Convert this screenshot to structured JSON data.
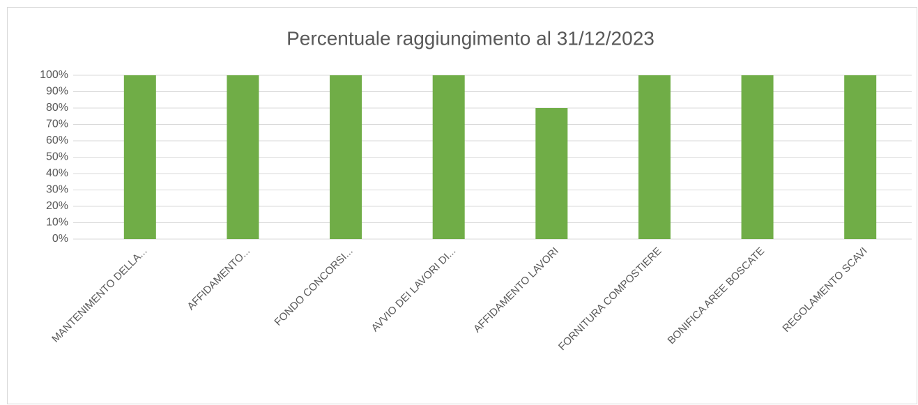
{
  "chart_data": {
    "type": "bar",
    "title": "Percentuale raggiungimento al 31/12/2023",
    "categories": [
      "MANTENIMENTO DELLA...",
      "AFFIDAMENTO...",
      "FONDO CONCORSI...",
      "AVVIO DEI LAVORI DI...",
      "AFFIDAMENTO LAVORI",
      "FORNITURA COMPOSTIERE",
      "BONIFICA AREE BOSCATE",
      "REGOLAMENTO SCAVI"
    ],
    "values": [
      100,
      100,
      100,
      100,
      80,
      100,
      100,
      100
    ],
    "color": "#70ad47",
    "ylim": [
      0,
      100
    ],
    "yticks": [
      {
        "value": 0,
        "label": "0%"
      },
      {
        "value": 10,
        "label": "10%"
      },
      {
        "value": 20,
        "label": "20%"
      },
      {
        "value": 30,
        "label": "30%"
      },
      {
        "value": 40,
        "label": "40%"
      },
      {
        "value": 50,
        "label": "50%"
      },
      {
        "value": 60,
        "label": "60%"
      },
      {
        "value": 70,
        "label": "70%"
      },
      {
        "value": 80,
        "label": "80%"
      },
      {
        "value": 90,
        "label": "90%"
      },
      {
        "value": 100,
        "label": "100%"
      }
    ],
    "grid": true
  }
}
